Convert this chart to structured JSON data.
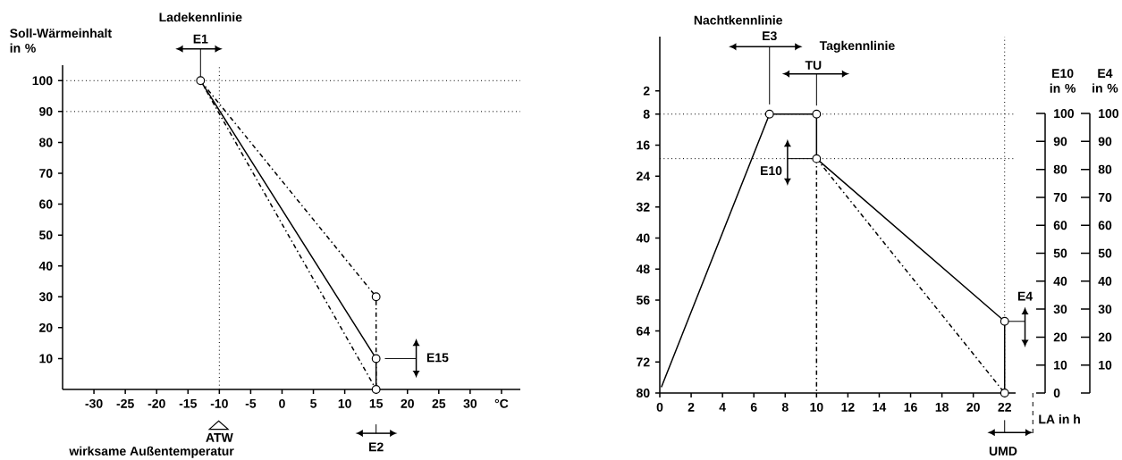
{
  "chart_data": [
    {
      "type": "line",
      "title": "Ladekennlinie",
      "xlabel": "wirksame Außentemperatur",
      "ylabel": "Soll-Wärmeinhalt in %",
      "xlim": [
        -35,
        38
      ],
      "ylim": [
        0,
        105
      ],
      "xticks": [
        -30,
        -25,
        -20,
        -15,
        -10,
        -5,
        0,
        5,
        10,
        15,
        20,
        25,
        30,
        {
          "value": 35,
          "label": "°C"
        }
      ],
      "yticks": [
        10,
        20,
        30,
        40,
        50,
        60,
        70,
        80,
        90,
        100
      ],
      "series": [
        {
          "color": "#000000",
          "line_style": "solid",
          "marker": "none",
          "x": [
            -13,
            15,
            15
          ],
          "values": [
            100,
            10,
            0
          ]
        },
        {
          "color": "#000000",
          "line_style": "dashed",
          "marker": "none",
          "x": [
            -13,
            15,
            15
          ],
          "values": [
            100,
            30,
            0
          ]
        },
        {
          "color": "#000000",
          "line_style": "dashed",
          "marker": "none",
          "x": [
            -13,
            15
          ],
          "values": [
            100,
            0
          ]
        },
        {
          "type": "scatter",
          "color": "#000000",
          "marker": "circle",
          "x": [
            -13,
            15,
            15,
            15
          ],
          "values": [
            100,
            30,
            10,
            0
          ]
        }
      ],
      "ref_lines": [
        {
          "axis": "y",
          "value": 100,
          "line_style": "dotted"
        },
        {
          "axis": "y",
          "value": 90,
          "line_style": "dotted"
        },
        {
          "axis": "x",
          "value": -10,
          "line_style": "dotted"
        }
      ],
      "annotations": [
        {
          "text": "E1",
          "x": -13,
          "y": 100
        },
        "ATW",
        "E2",
        "E15"
      ]
    },
    {
      "type": "line",
      "title": "Nachtkennlinie",
      "subtitle": "Tagkennlinie",
      "xlabel": "LA in h",
      "y2label": "E10 in %",
      "y3label": "E4 in %",
      "xlim": [
        0,
        22.7
      ],
      "ylim": [
        80,
        -12
      ],
      "xticks": [
        0,
        2,
        4,
        6,
        8,
        10,
        12,
        14,
        16,
        18,
        20,
        22
      ],
      "yticks": [
        2,
        8,
        16,
        24,
        32,
        40,
        48,
        56,
        64,
        72,
        80
      ],
      "y2lim": [
        0,
        127.5
      ],
      "y2ticks": [
        0,
        10,
        20,
        30,
        40,
        50,
        60,
        70,
        80,
        90,
        100
      ],
      "y3lim": [
        0,
        127.5
      ],
      "y3ticks": [
        {
          "value": 0,
          "label": null
        },
        10,
        20,
        30,
        40,
        50,
        60,
        70,
        80,
        90,
        100
      ],
      "series": [
        {
          "color": "#000000",
          "line_style": "solid",
          "marker": "none",
          "x": [
            0.1,
            7,
            10,
            10,
            22,
            22
          ],
          "values": [
            78.5,
            8,
            8,
            19.5,
            61.5,
            80
          ]
        },
        {
          "color": "#000000",
          "line_style": "dashed",
          "marker": "none",
          "x": [
            10,
            22
          ],
          "values": [
            19.5,
            80
          ]
        },
        {
          "color": "#000000",
          "line_style": "dashed",
          "marker": "none",
          "x": [
            10,
            10
          ],
          "values": [
            19.5,
            80
          ]
        },
        {
          "type": "scatter",
          "color": "#000000",
          "marker": "circle",
          "x": [
            7,
            10,
            10,
            22,
            22
          ],
          "values": [
            8,
            8,
            19.5,
            61.5,
            80
          ]
        }
      ],
      "ref_lines": [
        {
          "axis": "y",
          "value": 8,
          "line_style": "dotted"
        },
        {
          "axis": "y",
          "value": 19.5,
          "line_style": "dotted"
        },
        {
          "axis": "x",
          "value": 22,
          "line_style": "dotted"
        }
      ],
      "annotations": [
        "E3",
        "TU",
        {
          "text": "E10",
          "x": 10,
          "y": 19.5
        },
        {
          "text": "E4",
          "x": 22,
          "y": 61.5
        },
        "UMD"
      ]
    }
  ]
}
